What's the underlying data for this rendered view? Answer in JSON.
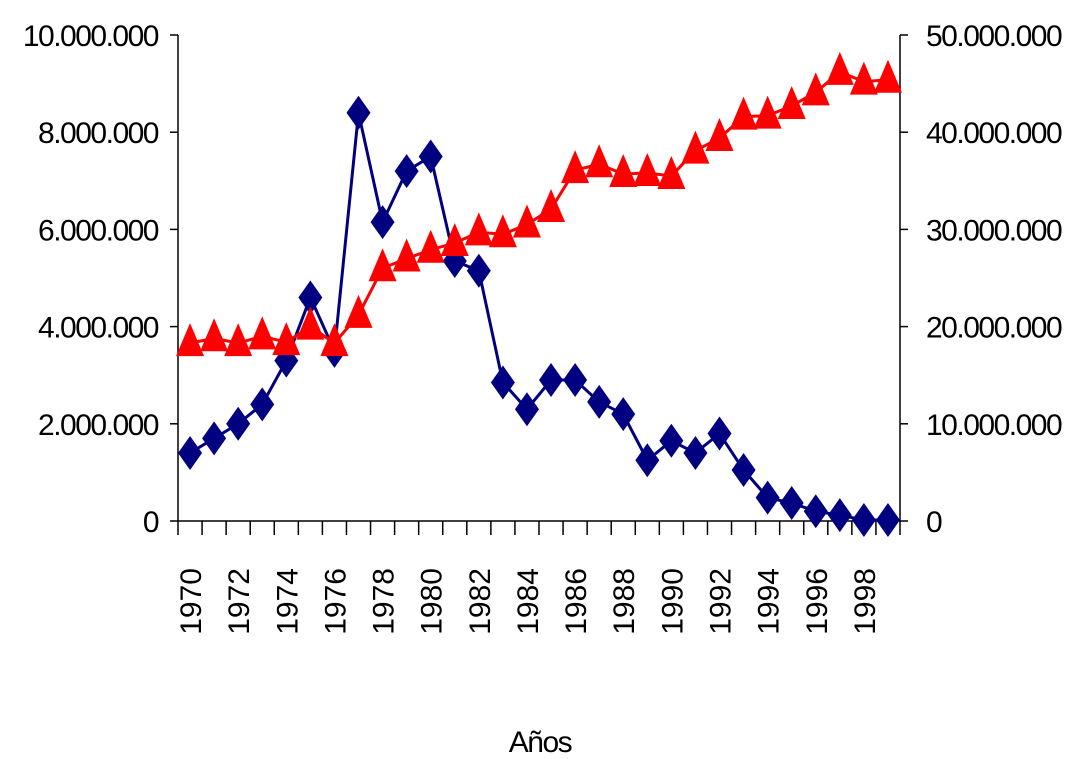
{
  "chart_data": {
    "type": "line",
    "xlabel": "Años",
    "categories": [
      "1970",
      null,
      "1972",
      null,
      "1974",
      null,
      "1976",
      null,
      "1978",
      null,
      "1980",
      null,
      "1982",
      null,
      "1984",
      null,
      "1986",
      null,
      "1988",
      null,
      "1990",
      null,
      "1992",
      null,
      "1994",
      null,
      "1996",
      null,
      "1998",
      null
    ],
    "series": [
      {
        "color": "#000080",
        "marker": "diamond",
        "axis": "y",
        "values": [
          1400000,
          1700000,
          2000000,
          2400000,
          3300000,
          4600000,
          3500000,
          8400000,
          6150000,
          7200000,
          7500000,
          5350000,
          5150000,
          2850000,
          2300000,
          2900000,
          2900000,
          2450000,
          2200000,
          1250000,
          1650000,
          1400000,
          1800000,
          1050000,
          480000,
          370000,
          200000,
          120000,
          20000,
          20000
        ]
      },
      {
        "color": "#ff0000",
        "marker": "triangle",
        "axis": "y2",
        "values": [
          18300000,
          18800000,
          18300000,
          19000000,
          18400000,
          20000000,
          18300000,
          21200000,
          26000000,
          27000000,
          27900000,
          28600000,
          29700000,
          29500000,
          30500000,
          32100000,
          36100000,
          36700000,
          35700000,
          35800000,
          35500000,
          38100000,
          39400000,
          41600000,
          41700000,
          42700000,
          44100000,
          46200000,
          45200000,
          45400000
        ]
      }
    ],
    "ylim": [
      0,
      10000000
    ],
    "yticks": [
      0,
      {
        "value": 2000000,
        "label": "2.000.000"
      },
      {
        "value": 4000000,
        "label": "4.000.000"
      },
      {
        "value": 6000000,
        "label": "6.000.000"
      },
      {
        "value": 8000000,
        "label": "8.000.000"
      },
      {
        "value": 10000000,
        "label": "10.000.000"
      }
    ],
    "y2lim": [
      0,
      50000000
    ],
    "y2ticks": [
      0,
      {
        "value": 10000000,
        "label": "10.000.000"
      },
      {
        "value": 20000000,
        "label": "20.000.000"
      },
      {
        "value": 30000000,
        "label": "30.000.000"
      },
      {
        "value": 40000000,
        "label": "40.000.000"
      },
      {
        "value": 50000000,
        "label": "50.000.000"
      }
    ]
  }
}
